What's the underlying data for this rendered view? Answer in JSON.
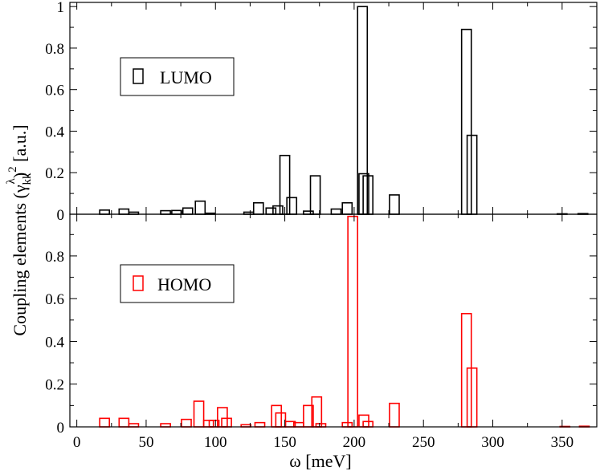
{
  "chart_data": [
    {
      "type": "bar",
      "panel": "top",
      "series": [
        {
          "name": "LUMO",
          "color": "#000000",
          "bars": [
            {
              "x": 20,
              "y": 0.02
            },
            {
              "x": 34,
              "y": 0.025
            },
            {
              "x": 41,
              "y": 0.01
            },
            {
              "x": 64,
              "y": 0.017
            },
            {
              "x": 72,
              "y": 0.018
            },
            {
              "x": 80,
              "y": 0.03
            },
            {
              "x": 89,
              "y": 0.063
            },
            {
              "x": 96,
              "y": 0.005
            },
            {
              "x": 124,
              "y": 0.01
            },
            {
              "x": 131,
              "y": 0.055
            },
            {
              "x": 140,
              "y": 0.03
            },
            {
              "x": 145,
              "y": 0.04
            },
            {
              "x": 150,
              "y": 0.283
            },
            {
              "x": 155,
              "y": 0.08
            },
            {
              "x": 167,
              "y": 0.015
            },
            {
              "x": 172,
              "y": 0.185
            },
            {
              "x": 187,
              "y": 0.025
            },
            {
              "x": 195,
              "y": 0.055
            },
            {
              "x": 206,
              "y": 1.0
            },
            {
              "x": 207,
              "y": 0.195
            },
            {
              "x": 210,
              "y": 0.185
            },
            {
              "x": 229,
              "y": 0.093
            },
            {
              "x": 281,
              "y": 0.89
            },
            {
              "x": 285,
              "y": 0.38
            },
            {
              "x": 350,
              "y": 0.002
            },
            {
              "x": 365,
              "y": 0.003
            }
          ]
        }
      ],
      "xlim": [
        -5,
        375
      ],
      "ylim": [
        0,
        1.02
      ],
      "yticks": [
        0,
        0.2,
        0.4,
        0.6,
        0.8,
        1
      ],
      "ytick_labels": [
        "0",
        "0.2",
        "0.4",
        "0.6",
        "0.8",
        "1"
      ],
      "legend": {
        "label": "LUMO",
        "placement": "upper-left"
      }
    },
    {
      "type": "bar",
      "panel": "bottom",
      "series": [
        {
          "name": "HOMO",
          "color": "#ff0000",
          "bars": [
            {
              "x": 20,
              "y": 0.04
            },
            {
              "x": 34,
              "y": 0.04
            },
            {
              "x": 41,
              "y": 0.015
            },
            {
              "x": 64,
              "y": 0.015
            },
            {
              "x": 79,
              "y": 0.035
            },
            {
              "x": 88,
              "y": 0.12
            },
            {
              "x": 95,
              "y": 0.03
            },
            {
              "x": 99,
              "y": 0.03
            },
            {
              "x": 105,
              "y": 0.09
            },
            {
              "x": 108,
              "y": 0.04
            },
            {
              "x": 122,
              "y": 0.01
            },
            {
              "x": 132,
              "y": 0.02
            },
            {
              "x": 144,
              "y": 0.1
            },
            {
              "x": 147,
              "y": 0.065
            },
            {
              "x": 154,
              "y": 0.025
            },
            {
              "x": 160,
              "y": 0.02
            },
            {
              "x": 167,
              "y": 0.1
            },
            {
              "x": 173,
              "y": 0.14
            },
            {
              "x": 176,
              "y": 0.015
            },
            {
              "x": 195,
              "y": 0.02
            },
            {
              "x": 199,
              "y": 0.985
            },
            {
              "x": 207,
              "y": 0.055
            },
            {
              "x": 210,
              "y": 0.025
            },
            {
              "x": 229,
              "y": 0.11
            },
            {
              "x": 281,
              "y": 0.53
            },
            {
              "x": 285,
              "y": 0.275
            },
            {
              "x": 352,
              "y": 0.002
            },
            {
              "x": 366,
              "y": 0.003
            }
          ]
        }
      ],
      "xlim": [
        -5,
        375
      ],
      "ylim": [
        0,
        0.995
      ],
      "yticks": [
        0,
        0.2,
        0.4,
        0.6,
        0.8
      ],
      "ytick_labels": [
        "0",
        "0.2",
        "0.4",
        "0.6",
        "0.8"
      ],
      "xticks": [
        0,
        50,
        100,
        150,
        200,
        250,
        300,
        350
      ],
      "xtick_labels": [
        "0",
        "50",
        "100",
        "150",
        "200",
        "250",
        "300",
        "350"
      ],
      "legend": {
        "label": "HOMO",
        "placement": "upper-left"
      }
    }
  ],
  "bar_width": 7,
  "xlabel": "ω [meV]",
  "ylabel": {
    "prefix": "Coupling elements (γ",
    "superscript_lambda": "λ",
    "subscript": "kk",
    "close": ")",
    "superscript_2": "2",
    "suffix": " [a.u.]"
  }
}
